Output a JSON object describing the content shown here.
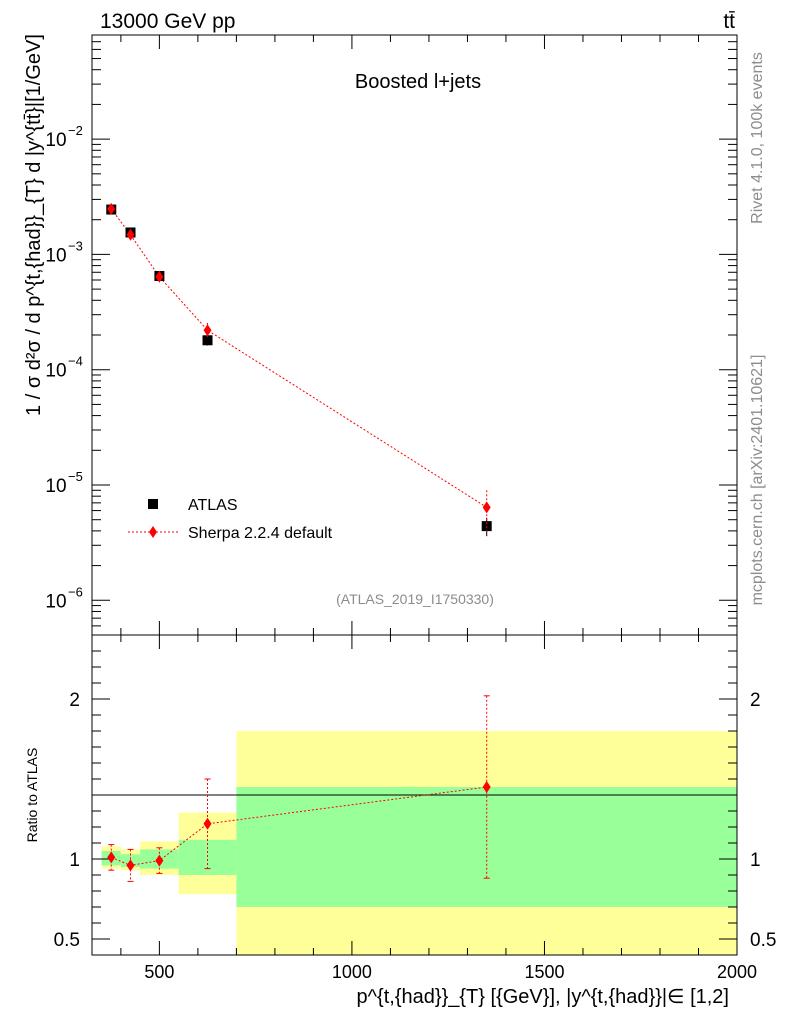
{
  "header": {
    "left": "13000 GeV pp",
    "right": "tt̄"
  },
  "side_labels": {
    "rivet": "Rivet 4.1.0,  100k events",
    "mcplots": "mcplots.cern.ch [arXiv:2401.10621]"
  },
  "chart_data": {
    "type": "scatter",
    "title": "Boosted l+jets",
    "analysis_id": "(ATLAS_2019_I1750330)",
    "ylabel_top": "1 / σ d²σ / d p^{t,{had}}_{T} d |y^{tt̄}|[1/GeV]",
    "ylabel_ratio": "Ratio to ATLAS",
    "xlabel": "p^{t,{had}}_{T} [{GeV}], |y^{t,{had}}|∈ [1,2]",
    "x_ticks": [
      "500",
      "1000",
      "1500",
      "2000"
    ],
    "y_ticks_top": [
      "10",
      "10",
      "10",
      "10",
      "10"
    ],
    "y_ticks_top_exp": [
      "−2",
      "−3",
      "−4",
      "−5",
      "−6"
    ],
    "y_ticks_ratio": [
      "2",
      "1",
      "0.5"
    ],
    "xlim": [
      325,
      2000
    ],
    "ylim_top": [
      5e-07,
      0.08
    ],
    "ylim_ratio": [
      0.4,
      2.4
    ],
    "legend": {
      "position": "lower-left",
      "data_label": "ATLAS",
      "mc_label": "Sherpa 2.2.4 default"
    },
    "bins": [
      [
        350,
        400
      ],
      [
        400,
        450
      ],
      [
        450,
        550
      ],
      [
        550,
        700
      ],
      [
        700,
        2000
      ]
    ],
    "data": {
      "name": "ATLAS",
      "x": [
        375,
        425,
        500,
        625,
        1350
      ],
      "y": [
        0.00245,
        0.00155,
        0.00065,
        0.00018,
        4.4e-06
      ],
      "y_err_lo": [
        0.00018,
        0.00013,
        6e-05,
        1.8e-05,
        8e-07
      ],
      "y_err_hi": [
        0.00018,
        0.00013,
        6e-05,
        1.8e-05,
        8e-07
      ]
    },
    "mc": {
      "name": "Sherpa 2.2.4 default",
      "x": [
        375,
        425,
        500,
        625,
        1350
      ],
      "y": [
        0.00248,
        0.00148,
        0.00064,
        0.00022,
        6.4e-06
      ],
      "y_err_lo": [
        0.0001,
        0.00012,
        6e-05,
        3.5e-05,
        2.6e-06
      ],
      "y_err_hi": [
        0.0001,
        0.00012,
        6e-05,
        3.5e-05,
        2.6e-06
      ]
    },
    "ratio": {
      "x": [
        375,
        425,
        500,
        625,
        1350
      ],
      "y": [
        1.01,
        0.96,
        0.99,
        1.22,
        1.45
      ],
      "y_err_lo": [
        0.08,
        0.1,
        0.08,
        0.28,
        0.57
      ],
      "y_err_hi": [
        0.08,
        0.1,
        0.08,
        0.28,
        0.57
      ]
    },
    "bands": {
      "green_lo": [
        0.96,
        0.95,
        0.94,
        0.9,
        0.7
      ],
      "green_hi": [
        1.05,
        1.03,
        1.06,
        1.12,
        1.45
      ],
      "yellow_lo": [
        0.94,
        0.93,
        0.9,
        0.78,
        0.4
      ],
      "yellow_hi": [
        1.08,
        1.06,
        1.11,
        1.29,
        1.8
      ]
    },
    "colors": {
      "data": "#000000",
      "mc": "#ff0000",
      "band_inner": "#99ff99",
      "band_outer": "#ffff99"
    }
  }
}
